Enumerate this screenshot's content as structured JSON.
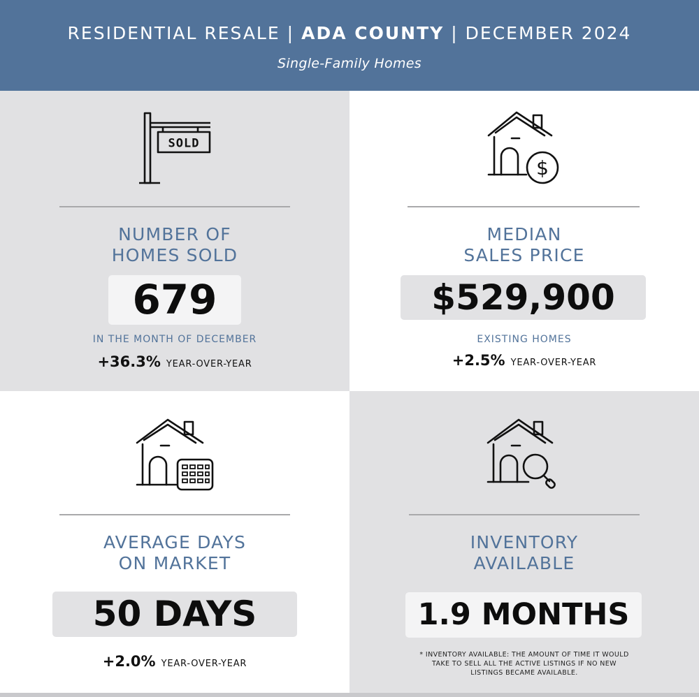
{
  "header": {
    "title_left": "RESIDENTIAL RESALE",
    "title_center": "ADA COUNTY",
    "title_right": "DECEMBER 2024",
    "separator": "|",
    "subtitle": "Single-Family Homes"
  },
  "cards": {
    "sold": {
      "icon": "sold-sign-icon",
      "sign_text": "SOLD",
      "label_line1": "NUMBER OF",
      "label_line2": "HOMES SOLD",
      "value": "679",
      "sub_label": "IN THE MONTH OF DECEMBER",
      "yoy_pct": "+36.3%",
      "yoy_label": "YEAR-OVER-YEAR"
    },
    "price": {
      "icon": "house-dollar-icon",
      "label_line1": "MEDIAN",
      "label_line2": "SALES PRICE",
      "value": "$529,900",
      "sub_label": "EXISTING HOMES",
      "yoy_pct": "+2.5%",
      "yoy_label": "YEAR-OVER-YEAR"
    },
    "dom": {
      "icon": "house-calendar-icon",
      "label_line1": "AVERAGE DAYS",
      "label_line2": "ON MARKET",
      "value": "50 DAYS",
      "yoy_pct": "+2.0%",
      "yoy_label": "YEAR-OVER-YEAR"
    },
    "inventory": {
      "icon": "house-magnifier-icon",
      "label_line1": "INVENTORY",
      "label_line2": "AVAILABLE",
      "value": "1.9 MONTHS",
      "footnote_line1": "* INVENTORY AVAILABLE: THE AMOUNT OF TIME IT WOULD",
      "footnote_line2": "TAKE TO SELL ALL THE ACTIVE LISTINGS IF NO NEW",
      "footnote_line3": "LISTINGS BECAME AVAILABLE."
    }
  },
  "colors": {
    "header_bg": "#52739a",
    "label_blue": "#52739a",
    "cell_gray": "#e1e1e3"
  }
}
